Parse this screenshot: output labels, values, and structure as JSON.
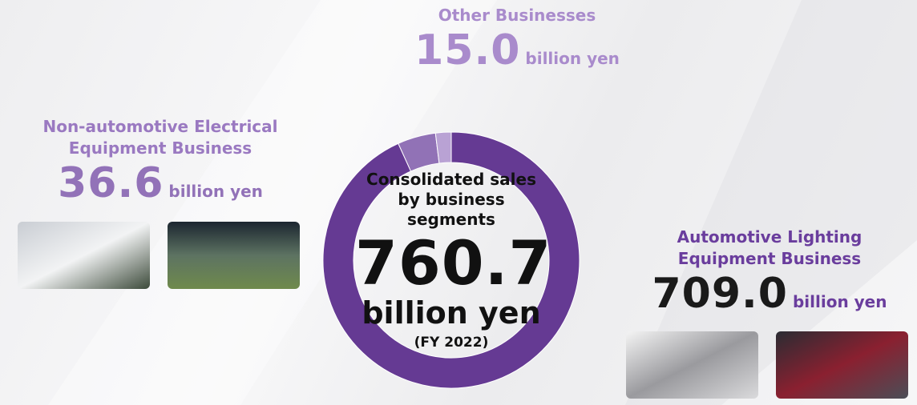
{
  "chart_data": {
    "type": "donut",
    "center_title": "Consolidated sales\nby business segments",
    "total": 760.7,
    "unit": "billion yen",
    "period": "(FY 2022)",
    "categories": [
      "Automotive Lighting\nEquipment Business",
      "Non-automotive Electrical\nEquipment Business",
      "Other Businesses"
    ],
    "values": [
      709.0,
      36.6,
      15.0
    ],
    "value_labels": [
      "709.0",
      "36.6",
      "15.0"
    ],
    "colors": [
      "#653a93",
      "#9172b6",
      "#b9a2d4"
    ]
  }
}
